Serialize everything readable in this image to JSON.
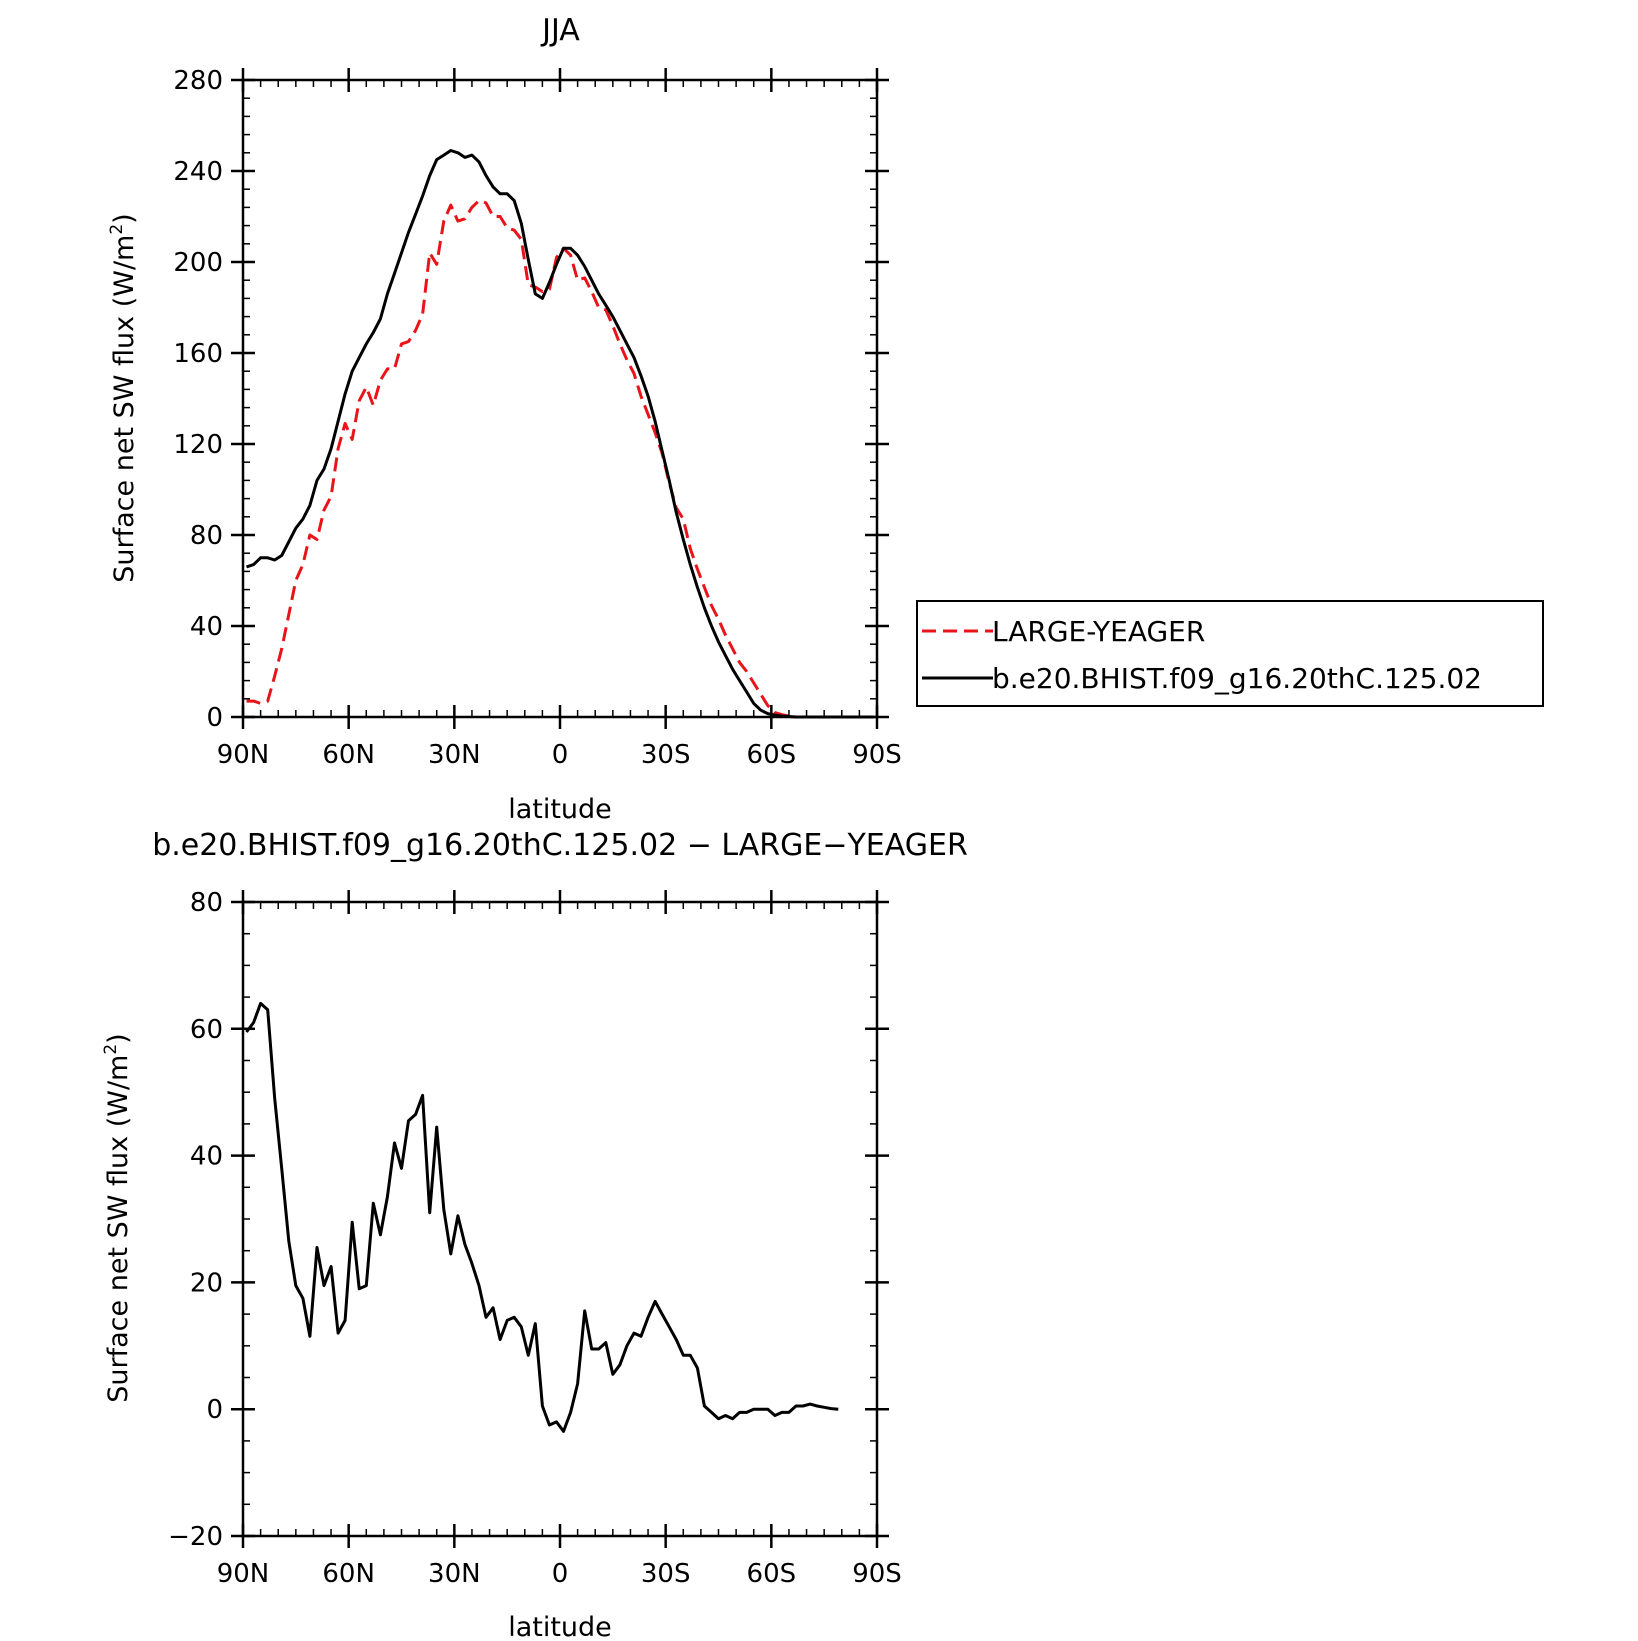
{
  "chart_data": [
    {
      "type": "line",
      "title": "JJA",
      "xlabel": "latitude",
      "ylabel": "Surface net SW flux (W/m²)",
      "ylabel_parts": [
        "Surface net SW flux (W/m",
        "2",
        ")"
      ],
      "xlim": [
        90,
        -90
      ],
      "ylim": [
        0,
        280
      ],
      "xticks": [
        90,
        60,
        30,
        0,
        -30,
        -60,
        -90
      ],
      "xtick_labels": [
        "90N",
        "60N",
        "30N",
        "0",
        "30S",
        "60S",
        "90S"
      ],
      "yticks": [
        0,
        40,
        80,
        120,
        160,
        200,
        240,
        280
      ],
      "ytick_labels": [
        "0",
        "40",
        "80",
        "120",
        "160",
        "200",
        "240",
        "280"
      ],
      "grid": false,
      "legend_position": "right",
      "series": [
        {
          "name": "LARGE-YEAGER",
          "color": "#e8141a",
          "dash": "dashed",
          "x": [
            89,
            87,
            85,
            83,
            81,
            79,
            77,
            75,
            73,
            71,
            69,
            67,
            65,
            63,
            61,
            59,
            57,
            55,
            53,
            51,
            49,
            47,
            45,
            43,
            41,
            39,
            37,
            35,
            33,
            31,
            29,
            27,
            25,
            23,
            21,
            19,
            17,
            15,
            13,
            11,
            9,
            7,
            5,
            3,
            1,
            -1,
            -3,
            -5,
            -7,
            -9,
            -11,
            -13,
            -15,
            -17,
            -19,
            -21,
            -23,
            -25,
            -27,
            -29,
            -31,
            -33,
            -35,
            -37,
            -39,
            -41,
            -43,
            -45,
            -47,
            -49,
            -51,
            -53,
            -55,
            -57,
            -59,
            -61,
            -63,
            -65,
            -67,
            -69,
            -71,
            -73,
            -75,
            -77,
            -79,
            -81,
            -83,
            -85,
            -87,
            -89
          ],
          "y": [
            7,
            7,
            6,
            7,
            18,
            30,
            45,
            60,
            67,
            80,
            78,
            91,
            97,
            118,
            129,
            122,
            139,
            145,
            137,
            148,
            153,
            153,
            164,
            165,
            170,
            177,
            204,
            199,
            218,
            225,
            218,
            219,
            224,
            227,
            226,
            220,
            220,
            215,
            214,
            210,
            190,
            189,
            187,
            188,
            202,
            206,
            203,
            192,
            193,
            187,
            180,
            179,
            172,
            164,
            157,
            151,
            141,
            133,
            125,
            116,
            103,
            92,
            87,
            74,
            65,
            57,
            49,
            43,
            36,
            30,
            24,
            20,
            15,
            10,
            5,
            2,
            1,
            0.5,
            0,
            0,
            0,
            0,
            0,
            0,
            0,
            0,
            0,
            0,
            0,
            0
          ]
        },
        {
          "name": "b.e20.BHIST.f09_g16.20thC.125.02",
          "color": "#000000",
          "dash": "solid",
          "x": [
            89,
            87,
            85,
            83,
            81,
            79,
            77,
            75,
            73,
            71,
            69,
            67,
            65,
            63,
            61,
            59,
            57,
            55,
            53,
            51,
            49,
            47,
            45,
            43,
            41,
            39,
            37,
            35,
            33,
            31,
            29,
            27,
            25,
            23,
            21,
            19,
            17,
            15,
            13,
            11,
            9,
            7,
            5,
            3,
            1,
            -1,
            -3,
            -5,
            -7,
            -9,
            -11,
            -13,
            -15,
            -17,
            -19,
            -21,
            -23,
            -25,
            -27,
            -29,
            -31,
            -33,
            -35,
            -37,
            -39,
            -41,
            -43,
            -45,
            -47,
            -49,
            -51,
            -53,
            -55,
            -57,
            -59,
            -61,
            -63,
            -65,
            -67,
            -69,
            -71,
            -73,
            -75,
            -77,
            -79,
            -81,
            -83,
            -85,
            -87,
            -89
          ],
          "y": [
            66,
            67,
            70,
            70,
            69,
            71,
            77,
            83,
            87,
            93,
            104,
            109,
            118,
            130,
            142,
            152,
            158,
            164,
            169,
            175,
            186,
            195,
            204,
            213,
            221,
            229,
            238,
            245,
            247,
            249,
            248,
            246,
            247,
            244,
            238,
            233,
            230,
            230,
            227,
            217,
            201,
            186,
            184,
            191,
            199,
            206,
            206,
            203,
            198,
            192,
            186,
            181,
            176,
            170,
            164,
            158,
            150,
            141,
            130,
            117,
            104,
            90,
            78,
            67,
            57,
            48,
            40,
            33,
            27,
            21,
            16,
            11,
            6,
            3,
            1.5,
            0.8,
            0.4,
            0.2,
            0,
            0,
            0,
            0,
            0,
            0,
            0,
            0,
            0,
            0,
            0,
            0
          ]
        }
      ]
    },
    {
      "type": "line",
      "title": "b.e20.BHIST.f09_g16.20thC.125.02 − LARGE−YEAGER",
      "xlabel": "latitude",
      "ylabel": "Surface net SW flux (W/m²)",
      "ylabel_parts": [
        "Surface net SW flux (W/m",
        "2",
        ")"
      ],
      "xlim": [
        90,
        -90
      ],
      "ylim": [
        -20,
        80
      ],
      "xticks": [
        90,
        60,
        30,
        0,
        -30,
        -60,
        -90
      ],
      "xtick_labels": [
        "90N",
        "60N",
        "30N",
        "0",
        "30S",
        "60S",
        "90S"
      ],
      "yticks": [
        -20,
        0,
        20,
        40,
        60,
        80
      ],
      "ytick_labels": [
        "−20",
        "0",
        "20",
        "40",
        "60",
        "80"
      ],
      "grid": false,
      "series": [
        {
          "color": "#000000",
          "dash": "solid",
          "x": [
            89,
            87,
            85,
            83,
            81,
            79,
            77,
            75,
            73,
            71,
            69,
            67,
            65,
            63,
            61,
            59,
            57,
            55,
            53,
            51,
            49,
            47,
            45,
            43,
            41,
            39,
            37,
            35,
            33,
            31,
            29,
            27,
            25,
            23,
            21,
            19,
            17,
            15,
            13,
            11,
            9,
            7,
            5,
            3,
            1,
            -1,
            -3,
            -5,
            -7,
            -9,
            -11,
            -13,
            -15,
            -17,
            -19,
            -21,
            -23,
            -25,
            -27,
            -29,
            -31,
            -33,
            -35,
            -37,
            -39,
            -41,
            -43,
            -45,
            -47,
            -49,
            -51,
            -53,
            -55,
            -57,
            -59,
            -61,
            -63,
            -65,
            -67,
            -69,
            -71,
            -73,
            -75,
            -77,
            -79
          ],
          "y": [
            59.5,
            61,
            64,
            63,
            49,
            38,
            26.5,
            19.5,
            17.5,
            11.5,
            25.5,
            19.5,
            22.5,
            12,
            14,
            29.5,
            19,
            19.5,
            32.5,
            27.5,
            33.5,
            42,
            38,
            45.5,
            46.5,
            49.5,
            31,
            44.5,
            31.5,
            24.5,
            30.5,
            26,
            23,
            19.5,
            14.5,
            16,
            11,
            14,
            14.5,
            13,
            8.5,
            13.5,
            0.5,
            -2.5,
            -2,
            -3.5,
            -0.5,
            4,
            15.5,
            9.5,
            9.5,
            10.5,
            5.5,
            7,
            10,
            12,
            11.5,
            14.5,
            17,
            15,
            13,
            11,
            8.5,
            8.5,
            6.5,
            0.5,
            -0.5,
            -1.5,
            -1,
            -1.5,
            -0.5,
            -0.5,
            0,
            0,
            0,
            -1,
            -0.5,
            -0.5,
            0.5,
            0.5,
            0.8,
            0.5,
            0.3,
            0.1,
            0
          ]
        }
      ]
    }
  ]
}
